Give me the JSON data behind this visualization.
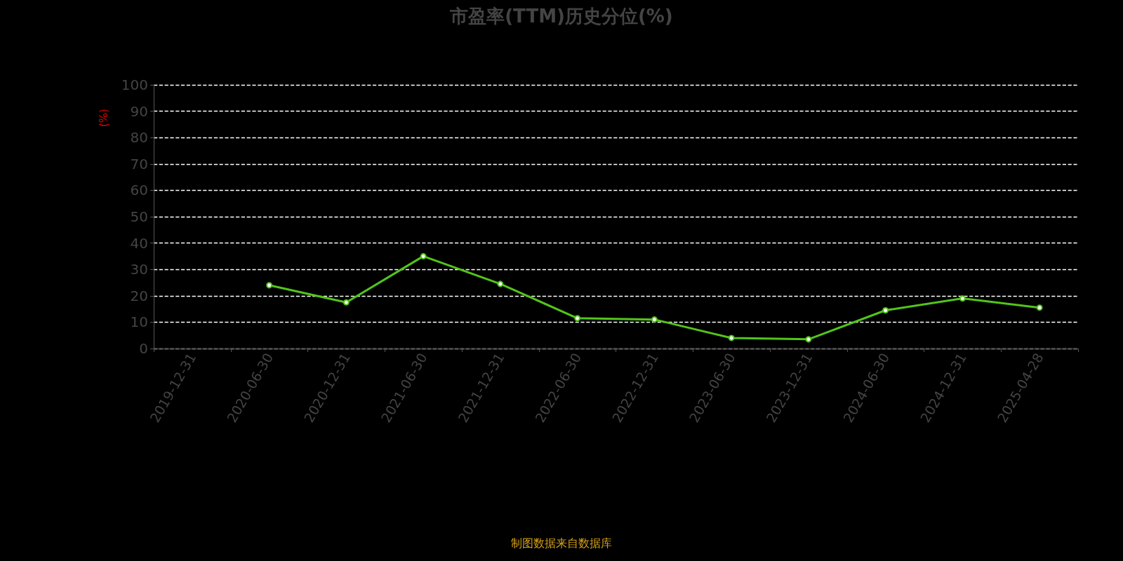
{
  "chart_data": {
    "type": "line",
    "title": "市盈率(TTM)历史分位(%)",
    "ylabel": "(%)",
    "categories": [
      "2019-12-31",
      "2020-06-30",
      "2020-12-31",
      "2021-06-30",
      "2021-12-31",
      "2022-06-30",
      "2022-12-31",
      "2023-06-30",
      "2023-12-31",
      "2024-06-30",
      "2024-12-31",
      "2025-04-28"
    ],
    "series": [
      {
        "color": "#52c41a",
        "values": [
          null,
          24,
          17.5,
          35,
          24.5,
          11.5,
          11,
          4,
          3.5,
          14.5,
          19,
          15.5
        ]
      }
    ],
    "ylim": [
      0,
      100
    ],
    "yticks": [
      0,
      10,
      20,
      30,
      40,
      50,
      60,
      70,
      80,
      90,
      100
    ],
    "grid": "y",
    "marker": "circle",
    "line_style": "solid",
    "annotations": [
      "制图数据来自数据库"
    ]
  }
}
